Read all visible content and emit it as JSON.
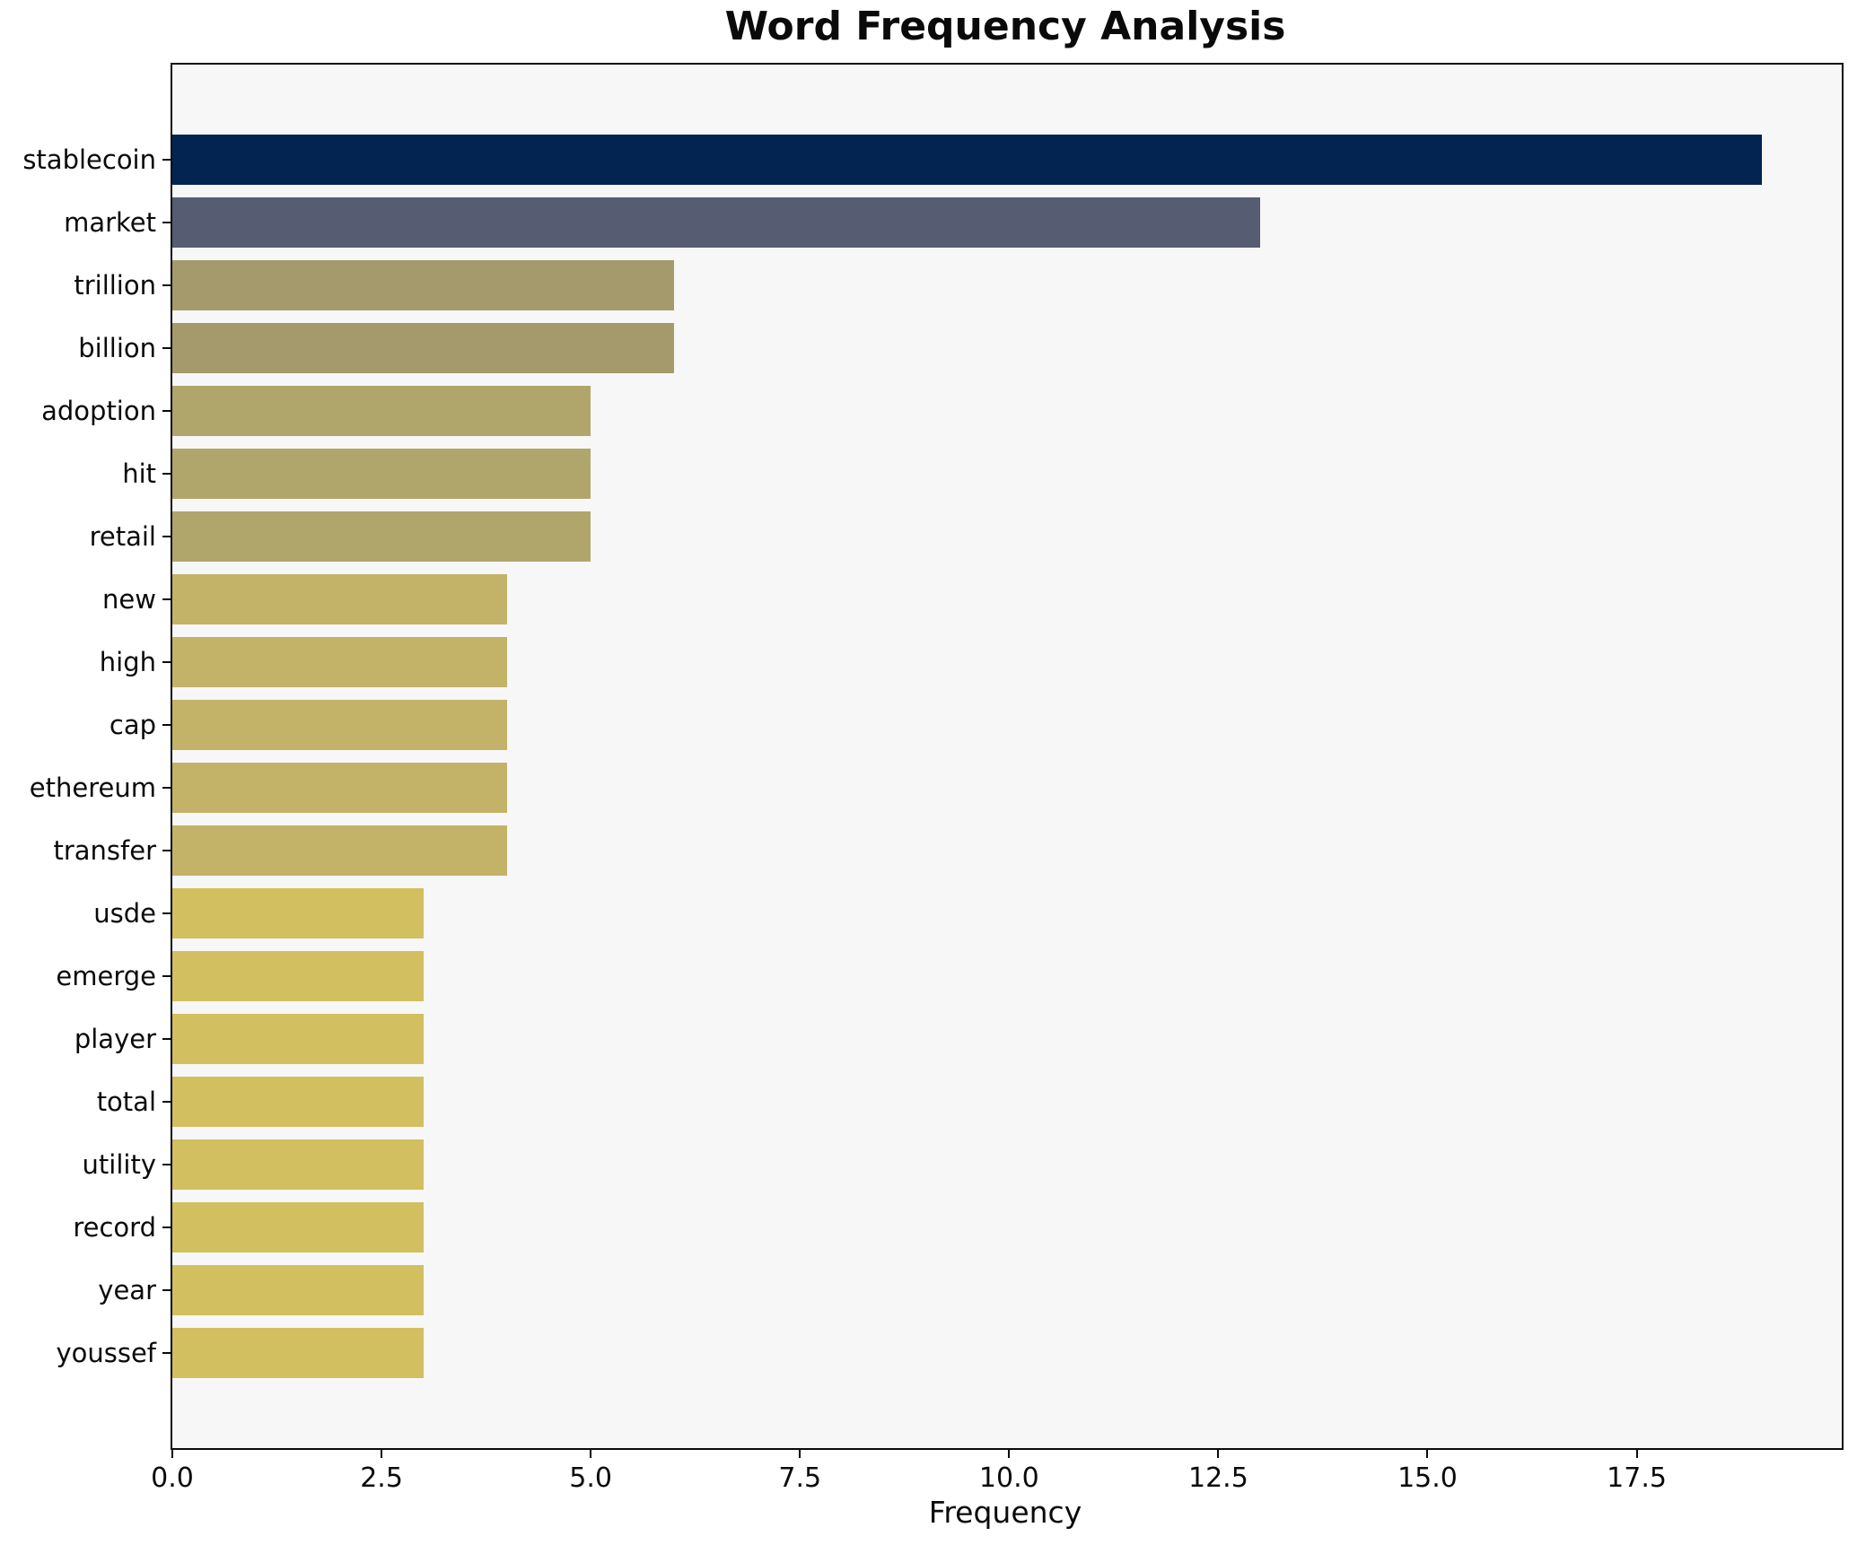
{
  "title": "Word Frequency Analysis",
  "xlabel": "Frequency",
  "chart_data": {
    "type": "bar",
    "orientation": "horizontal",
    "title": "Word Frequency Analysis",
    "xlabel": "Frequency",
    "ylabel": "",
    "categories": [
      "stablecoin",
      "market",
      "trillion",
      "billion",
      "adoption",
      "hit",
      "retail",
      "new",
      "high",
      "cap",
      "ethereum",
      "transfer",
      "usde",
      "emerge",
      "player",
      "total",
      "utility",
      "record",
      "year",
      "youssef"
    ],
    "values": [
      19,
      13,
      6,
      6,
      5,
      5,
      5,
      4,
      4,
      4,
      4,
      4,
      3,
      3,
      3,
      3,
      3,
      3,
      3,
      3
    ],
    "bar_colors": [
      "#032450",
      "#565d72",
      "#a49a6c",
      "#a49a6c",
      "#b0a66c",
      "#b0a66c",
      "#b0a66c",
      "#c3b368",
      "#c3b368",
      "#c3b368",
      "#c3b368",
      "#c3b368",
      "#d2bf60",
      "#d2bf60",
      "#d2bf60",
      "#d2bf60",
      "#d2bf60",
      "#d2bf60",
      "#d2bf60",
      "#d2bf60"
    ],
    "xlim": [
      0,
      19.95
    ],
    "xticks": [
      0.0,
      2.5,
      5.0,
      7.5,
      10.0,
      12.5,
      15.0,
      17.5
    ],
    "grid": false,
    "legend_position": "none",
    "plot_background": "#f7f7f7",
    "spine_color": "#0a0a0a"
  }
}
